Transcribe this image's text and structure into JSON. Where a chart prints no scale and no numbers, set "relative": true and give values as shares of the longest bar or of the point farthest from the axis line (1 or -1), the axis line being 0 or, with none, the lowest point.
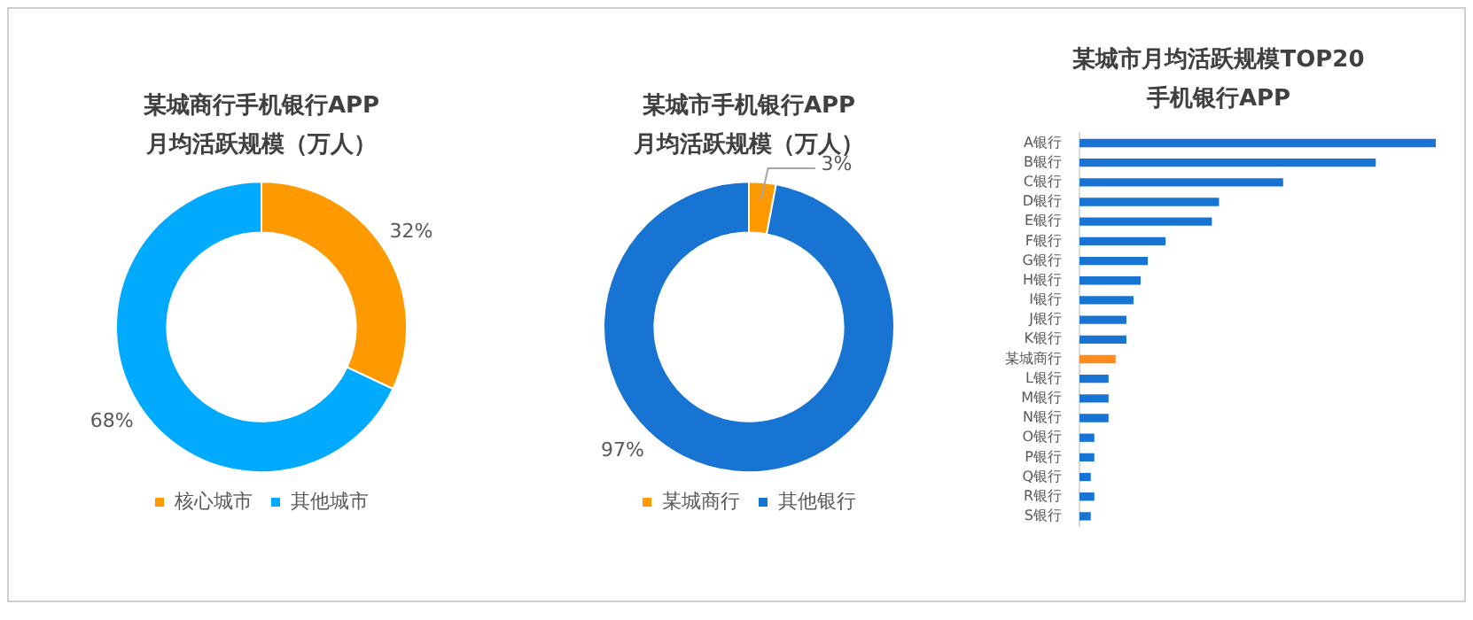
{
  "chart_data": [
    {
      "type": "donut",
      "title": "某城商行手机银行APP\n月均活跃规模（万人）",
      "categories": [
        "核心城市",
        "其他城市"
      ],
      "values": [
        32,
        68
      ],
      "value_labels": [
        "32%",
        "68%"
      ],
      "colors": [
        "#ff9900",
        "#00aaff"
      ],
      "legend": "bottom"
    },
    {
      "type": "donut",
      "title": "某城市手机银行APP\n月均活跃规模（万人）",
      "categories": [
        "某城商行",
        "其他银行"
      ],
      "values": [
        3,
        97
      ],
      "value_labels": [
        "3%",
        "97%"
      ],
      "colors": [
        "#ff9900",
        "#1874d2"
      ],
      "legend": "bottom"
    },
    {
      "type": "bar",
      "orientation": "horizontal",
      "relative": true,
      "title": "某城市月均活跃规模TOP20\n手机银行APP",
      "categories": [
        "A银行",
        "B银行",
        "C银行",
        "D银行",
        "E银行",
        "F银行",
        "G银行",
        "H银行",
        "I银行",
        "J银行",
        "K银行",
        "某城商行",
        "L银行",
        "M银行",
        "N银行",
        "O银行",
        "P银行",
        "Q银行",
        "R银行",
        "S银行"
      ],
      "values": [
        1,
        0.83,
        0.57,
        0.39,
        0.37,
        0.24,
        0.19,
        0.17,
        0.15,
        0.13,
        0.13,
        0.1,
        0.08,
        0.08,
        0.08,
        0.04,
        0.04,
        0.03,
        0.04,
        0.03
      ],
      "colors": [
        "#1874d2",
        "#1874d2",
        "#1874d2",
        "#1874d2",
        "#1874d2",
        "#1874d2",
        "#1874d2",
        "#1874d2",
        "#1874d2",
        "#1874d2",
        "#1874d2",
        "#ff8c1a",
        "#1874d2",
        "#1874d2",
        "#1874d2",
        "#1874d2",
        "#1874d2",
        "#1874d2",
        "#1874d2",
        "#1874d2"
      ],
      "legend": false
    }
  ]
}
